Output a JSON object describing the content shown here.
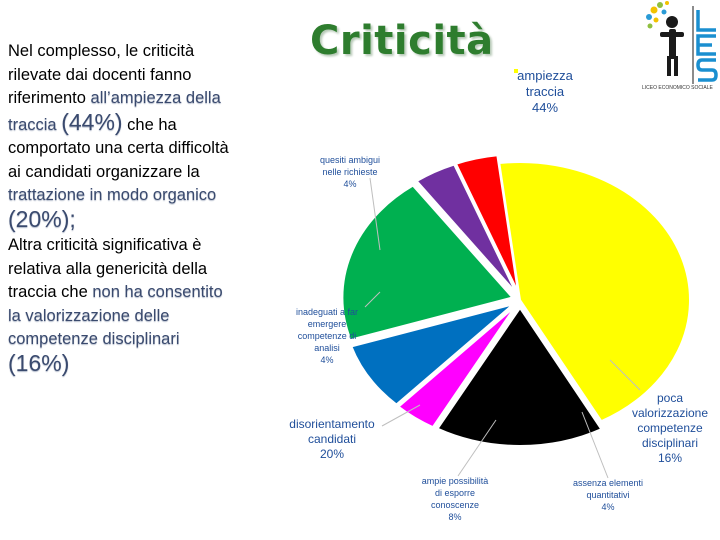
{
  "title": "Criticità",
  "text": {
    "p1_a": "Nel complesso, le criticità rilevate dai docenti fanno riferimento ",
    "p1_hl": "all’ampiezza della traccia",
    "p1_pct": "(44%)",
    "p1_b": " che ha comportato una certa difficoltà ai candidati organizzare la ",
    "p1_hl2": "trattazione in modo organico",
    "p1_pct2": "(20%);",
    "p2_a": "Altra criticità significativa è relativa alla genericità della traccia che ",
    "p2_hl": "non ha consentito la valorizzazione delle competenze disciplinari",
    "p2_pct": "(16%)"
  },
  "logo": {
    "letters": "LES",
    "caption": "LICEO ECONOMICO SOCIALE"
  },
  "chart_data": {
    "type": "pie",
    "slices": [
      {
        "label": [
          "ampiezza",
          "traccia",
          "44%"
        ],
        "value": 44,
        "color": "#ffff00"
      },
      {
        "label": [
          "poca",
          "valorizzazione",
          "competenze",
          "disciplinari",
          "16%"
        ],
        "value": 16,
        "color": "#000000"
      },
      {
        "label": [
          "assenza elementi",
          "quantitativi",
          "4%"
        ],
        "value": 4,
        "color": "#ff00ff"
      },
      {
        "label": [
          "ampie possibilità",
          "di esporre",
          "conoscenze",
          "8%"
        ],
        "value": 8,
        "color": "#0070c0"
      },
      {
        "label": [
          "disorientamento",
          "candidati",
          "20%"
        ],
        "value": 20,
        "color": "#00b050"
      },
      {
        "label": [
          "inadeguati a far",
          "emergere",
          "competenze di",
          "analisi",
          "4%"
        ],
        "value": 4,
        "color": "#7030a0"
      },
      {
        "label": [
          "quesiti ambigui",
          "nelle richieste",
          "4%"
        ],
        "value": 4,
        "color": "#ff0000"
      }
    ]
  }
}
